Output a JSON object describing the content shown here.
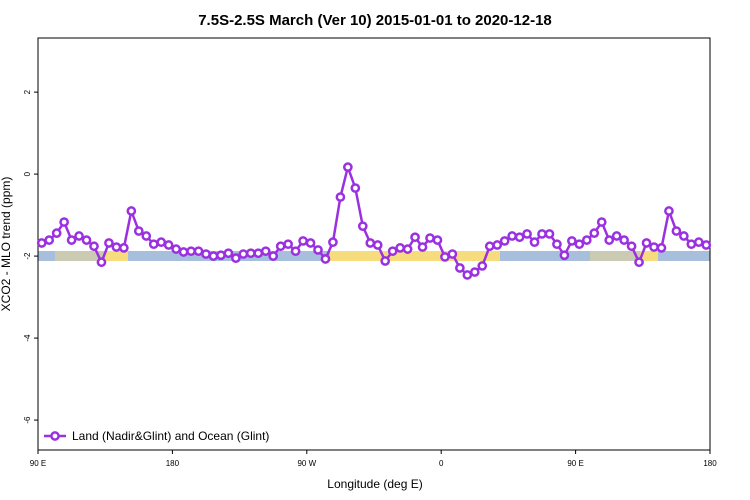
{
  "chart_data": {
    "type": "line",
    "title": "7.5S-2.5S March (Ver 10)   2015-01-01 to 2020-12-18",
    "x_label": "Longitude (deg E)",
    "y_label": "XCO2 - MLO trend (ppm)",
    "xlim": [
      90,
      540
    ],
    "ylim": [
      -6.73,
      3.32
    ],
    "xticks": [
      {
        "value": 90,
        "label": "90 E"
      },
      180,
      {
        "value": 270,
        "label": "90 W"
      },
      {
        "value": 360,
        "label": "0"
      },
      {
        "value": 450,
        "label": "90 E"
      },
      {
        "value": 540,
        "label": "180"
      }
    ],
    "yticks": [
      -6,
      -4,
      -2,
      0,
      2
    ],
    "legend": "bottom-left",
    "x": [
      92.5,
      97.5,
      102.5,
      107.5,
      112.5,
      117.5,
      122.5,
      127.5,
      132.5,
      137.5,
      142.5,
      147.5,
      152.5,
      157.5,
      162.5,
      167.5,
      172.5,
      177.5,
      182.5,
      187.5,
      192.5,
      197.5,
      202.5,
      207.5,
      212.5,
      217.5,
      222.5,
      227.5,
      232.5,
      237.5,
      242.5,
      247.5,
      252.5,
      257.5,
      262.5,
      267.5,
      272.5,
      277.5,
      282.5,
      287.5,
      292.5,
      297.5,
      302.5,
      307.5,
      312.5,
      317.5,
      322.5,
      327.5,
      332.5,
      337.5,
      342.5,
      347.5,
      352.5,
      357.5,
      362.5,
      367.5,
      372.5,
      377.5,
      382.5,
      387.5,
      392.5,
      397.5,
      402.5,
      407.5,
      412.5,
      417.5,
      422.5,
      427.5,
      432.5,
      437.5,
      442.5,
      447.5,
      452.5,
      457.5,
      462.5,
      467.5,
      472.5,
      477.5,
      482.5,
      487.5,
      492.5,
      497.5,
      502.5,
      507.5,
      512.5,
      517.5,
      522.5,
      527.5,
      532.5,
      537.5
    ],
    "series": [
      {
        "name": "Land (Nadir&Glint) and Ocean (Glint)",
        "color": "#9b30e0",
        "values": [
          -1.68,
          -1.61,
          -1.44,
          -1.17,
          -1.61,
          -1.51,
          -1.61,
          -1.76,
          -2.15,
          -1.68,
          -1.78,
          -1.8,
          -0.9,
          -1.39,
          -1.51,
          -1.71,
          -1.66,
          -1.73,
          -1.83,
          -1.9,
          -1.88,
          -1.88,
          -1.95,
          -2.0,
          -1.98,
          -1.93,
          -2.05,
          -1.95,
          -1.93,
          -1.93,
          -1.88,
          -2.0,
          -1.76,
          -1.71,
          -1.88,
          -1.63,
          -1.68,
          -1.85,
          -2.07,
          -1.66,
          -0.56,
          0.17,
          -0.34,
          -1.27,
          -1.68,
          -1.73,
          -2.12,
          -1.88,
          -1.8,
          -1.83,
          -1.54,
          -1.78,
          -1.56,
          -1.61,
          -2.02,
          -1.95,
          -2.29,
          -2.46,
          -2.39,
          -2.24,
          -1.76,
          -1.73,
          -1.63,
          -1.51,
          -1.54,
          -1.46,
          -1.66,
          -1.46,
          -1.46,
          -1.71,
          -1.98,
          -1.63,
          -1.71,
          -1.61,
          -1.44,
          -1.17,
          -1.61,
          -1.51,
          -1.61,
          -1.76,
          -2.15,
          -1.68,
          -1.78,
          -1.8,
          -0.9,
          -1.39,
          -1.51,
          -1.71,
          -1.66,
          -1.73
        ]
      }
    ]
  }
}
